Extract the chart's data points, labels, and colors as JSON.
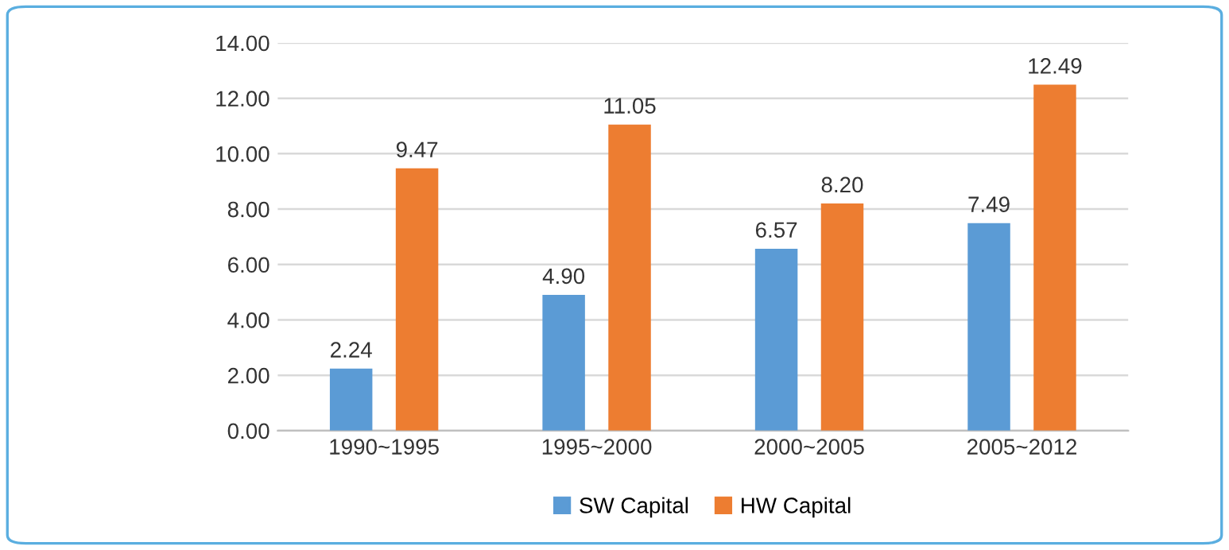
{
  "chart_data": {
    "type": "bar",
    "categories": [
      "1990~1995",
      "1995~2000",
      "2000~2005",
      "2005~2012"
    ],
    "series": [
      {
        "name": "SW Capital",
        "color": "#5b9bd5",
        "values": [
          2.24,
          4.9,
          6.57,
          7.49
        ],
        "value_labels": [
          "2.24",
          "4.90",
          "6.57",
          "7.49"
        ]
      },
      {
        "name": "HW Capital",
        "color": "#ed7d31",
        "values": [
          9.47,
          11.05,
          8.2,
          12.49
        ],
        "value_labels": [
          "9.47",
          "11.05",
          "8.20",
          "12.49"
        ]
      }
    ],
    "ylim": [
      0,
      14
    ],
    "yticks": [
      {
        "value": 0,
        "label": "0.00"
      },
      {
        "value": 2,
        "label": "2.00"
      },
      {
        "value": 4,
        "label": "4.00"
      },
      {
        "value": 6,
        "label": "6.00"
      },
      {
        "value": 8,
        "label": "8.00"
      },
      {
        "value": 10,
        "label": "10.00"
      },
      {
        "value": 12,
        "label": "12.00"
      },
      {
        "value": 14,
        "label": "14.00"
      }
    ],
    "grid": "y",
    "legend": "bottom"
  }
}
